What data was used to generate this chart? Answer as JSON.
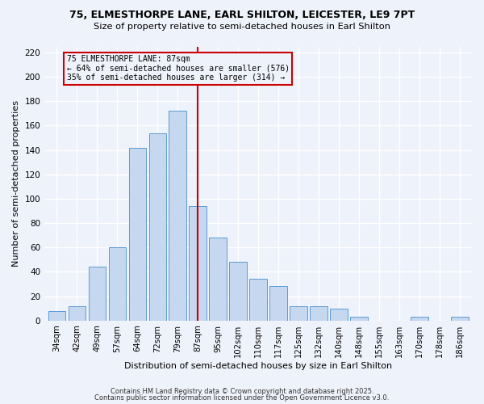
{
  "title_line1": "75, ELMESTHORPE LANE, EARL SHILTON, LEICESTER, LE9 7PT",
  "title_line2": "Size of property relative to semi-detached houses in Earl Shilton",
  "xlabel": "Distribution of semi-detached houses by size in Earl Shilton",
  "ylabel": "Number of semi-detached properties",
  "bar_labels": [
    "34sqm",
    "42sqm",
    "49sqm",
    "57sqm",
    "64sqm",
    "72sqm",
    "79sqm",
    "87sqm",
    "95sqm",
    "102sqm",
    "110sqm",
    "117sqm",
    "125sqm",
    "132sqm",
    "140sqm",
    "148sqm",
    "155sqm",
    "163sqm",
    "170sqm",
    "178sqm",
    "186sqm"
  ],
  "bar_values": [
    8,
    12,
    44,
    60,
    142,
    154,
    172,
    94,
    68,
    48,
    34,
    28,
    12,
    12,
    10,
    3,
    0,
    0,
    3,
    0,
    3
  ],
  "bar_color": "#c5d8f0",
  "bar_edge_color": "#5b9bd5",
  "vline_color": "#cc0000",
  "annotation_title": "75 ELMESTHORPE LANE: 87sqm",
  "annotation_line2": "← 64% of semi-detached houses are smaller (576)",
  "annotation_line3": "35% of semi-detached houses are larger (314) →",
  "annotation_box_edge": "#cc0000",
  "ylim": [
    0,
    225
  ],
  "yticks": [
    0,
    20,
    40,
    60,
    80,
    100,
    120,
    140,
    160,
    180,
    200,
    220
  ],
  "footer1": "Contains HM Land Registry data © Crown copyright and database right 2025.",
  "footer2": "Contains public sector information licensed under the Open Government Licence v3.0.",
  "bg_color": "#eef2fb",
  "grid_color": "#ffffff"
}
